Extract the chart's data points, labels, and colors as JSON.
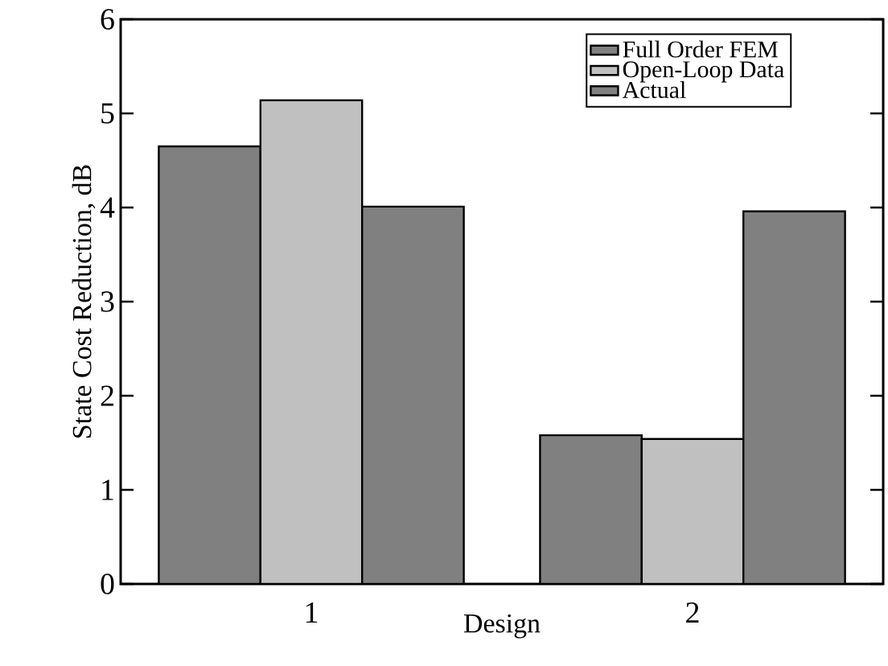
{
  "chart_data": {
    "type": "bar",
    "xlabel": "Design",
    "ylabel": "State Cost Reduction, dB",
    "categories": [
      "1",
      "2"
    ],
    "series": [
      {
        "name": "Full Order FEM",
        "color": "#808080",
        "values": [
          4.65,
          1.58
        ]
      },
      {
        "name": "Open-Loop Data",
        "color": "#c0c0c0",
        "values": [
          5.14,
          1.54
        ]
      },
      {
        "name": "Actual",
        "color": "#808080",
        "values": [
          4.01,
          3.96
        ]
      }
    ],
    "ylim": [
      0,
      6
    ],
    "yticks": [
      0,
      1,
      2,
      3,
      4,
      5,
      6
    ],
    "legend": "top right",
    "grid": false
  }
}
